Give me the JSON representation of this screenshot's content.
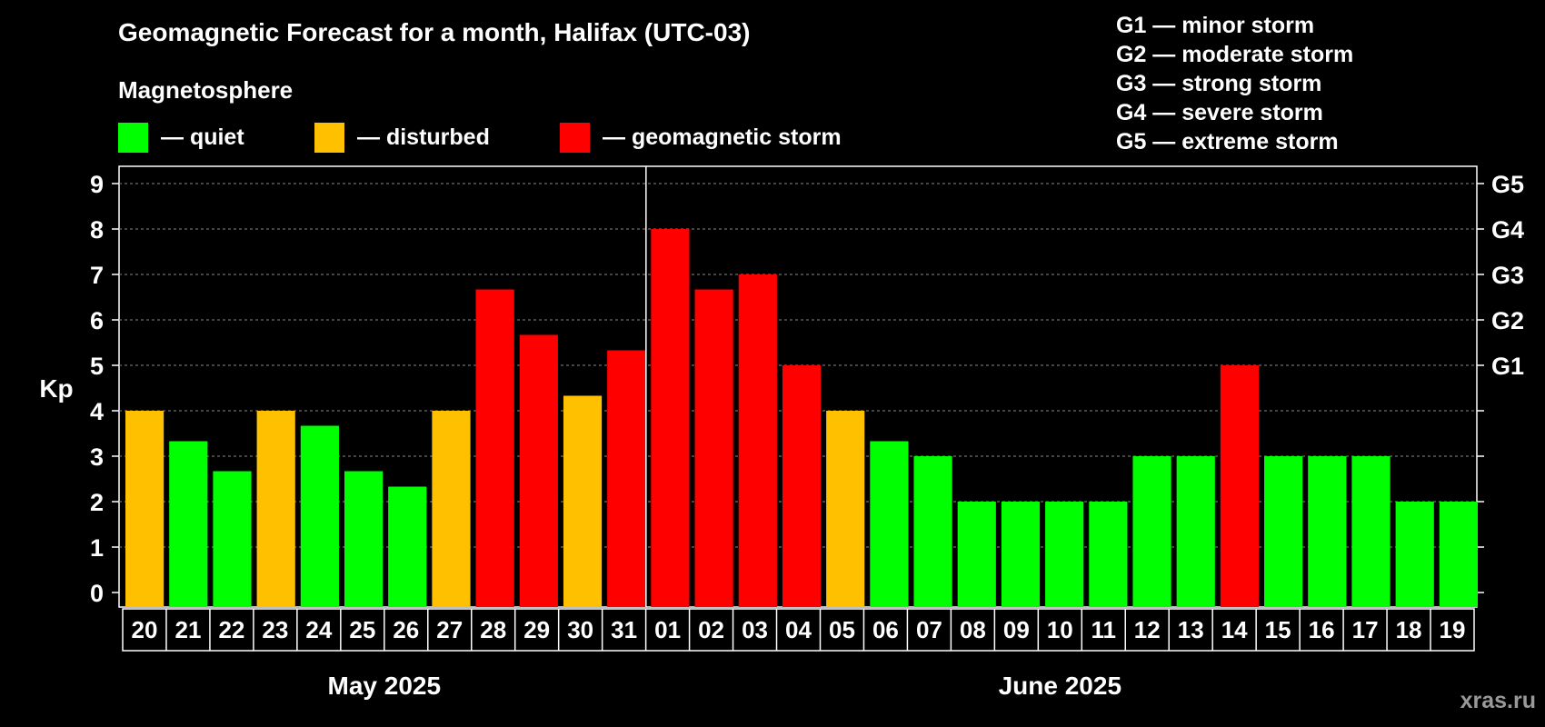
{
  "title": "Geomagnetic Forecast for a month, Halifax (UTC-03)",
  "legend": {
    "heading": "Magnetosphere",
    "items": [
      {
        "label": "— quiet",
        "color": "#00ff00"
      },
      {
        "label": "— disturbed",
        "color": "#ffc000"
      },
      {
        "label": "— geomagnetic storm",
        "color": "#ff0000"
      }
    ]
  },
  "g_levels": [
    "G1 — minor storm",
    "G2 — moderate storm",
    "G3 — strong storm",
    "G4 — severe storm",
    "G5 — extreme storm"
  ],
  "watermark": "xras.ru",
  "colors": {
    "quiet": "#00ff00",
    "disturbed": "#ffc000",
    "storm": "#ff0000",
    "background": "#000000",
    "axis": "#ffffff"
  },
  "chart_data": {
    "type": "bar",
    "title": "Geomagnetic Forecast for a month, Halifax (UTC-03)",
    "ylabel": "Kp",
    "ylim": [
      0,
      9
    ],
    "yticks": [
      0,
      1,
      2,
      3,
      4,
      5,
      6,
      7,
      8,
      9
    ],
    "right_axis": [
      {
        "kp": 5,
        "label": "G1"
      },
      {
        "kp": 6,
        "label": "G2"
      },
      {
        "kp": 7,
        "label": "G3"
      },
      {
        "kp": 8,
        "label": "G4"
      },
      {
        "kp": 9,
        "label": "G5"
      }
    ],
    "grid": true,
    "categories": [
      "20",
      "21",
      "22",
      "23",
      "24",
      "25",
      "26",
      "27",
      "28",
      "29",
      "30",
      "31",
      "01",
      "02",
      "03",
      "04",
      "05",
      "06",
      "07",
      "08",
      "09",
      "10",
      "11",
      "12",
      "13",
      "14",
      "15",
      "16",
      "17",
      "18",
      "19"
    ],
    "values": [
      4,
      3.33,
      2.67,
      4,
      3.67,
      2.67,
      2.33,
      4,
      6.67,
      5.67,
      4.33,
      5.33,
      8,
      6.67,
      7,
      5,
      4,
      3.33,
      3,
      2,
      2,
      2,
      2,
      3,
      3,
      5,
      3,
      3,
      3,
      2,
      2
    ],
    "status": [
      "disturbed",
      "quiet",
      "quiet",
      "disturbed",
      "quiet",
      "quiet",
      "quiet",
      "disturbed",
      "storm",
      "storm",
      "disturbed",
      "storm",
      "storm",
      "storm",
      "storm",
      "storm",
      "disturbed",
      "quiet",
      "quiet",
      "quiet",
      "quiet",
      "quiet",
      "quiet",
      "quiet",
      "quiet",
      "storm",
      "quiet",
      "quiet",
      "quiet",
      "quiet",
      "quiet"
    ],
    "months": [
      {
        "label": "May 2025",
        "start": 0,
        "end": 11
      },
      {
        "label": "June 2025",
        "start": 12,
        "end": 30
      }
    ]
  }
}
